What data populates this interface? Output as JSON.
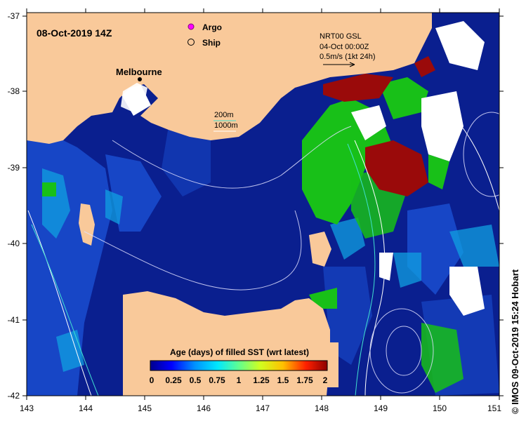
{
  "map": {
    "timestamp": "08-Oct-2019 14Z",
    "credit": "© IMOS 09-Oct-2019 15:24 Hobart",
    "city": "Melbourne",
    "legend": {
      "argo": "Argo",
      "ship": "Ship"
    },
    "isobaths": {
      "label_200": "200m",
      "label_1000": "1000m"
    },
    "current_product": {
      "name": "NRT00 GSL",
      "date": "04-Oct 00:00Z",
      "scale": "0.5m/s (1kt 24h)"
    },
    "colorbar": {
      "title": "Age (days) of filled SST (wrt latest)",
      "ticks": [
        "0",
        "0.25",
        "0.5",
        "0.75",
        "1",
        "1.25",
        "1.5",
        "1.75",
        "2"
      ]
    },
    "axes": {
      "lon_ticks": [
        "143",
        "144",
        "145",
        "146",
        "147",
        "148",
        "149",
        "150",
        "151"
      ],
      "lat_ticks": [
        "-37",
        "-38",
        "-39",
        "-40",
        "-41",
        "-42"
      ]
    },
    "colors": {
      "land": "#f9c99a",
      "ocean_fresh": "#0a1f8f",
      "age_green": "#20c020",
      "age_dark_red": "#9a0a0a",
      "isobath_200": "#40e0d0",
      "isobath_1000": "#ffffff"
    }
  }
}
